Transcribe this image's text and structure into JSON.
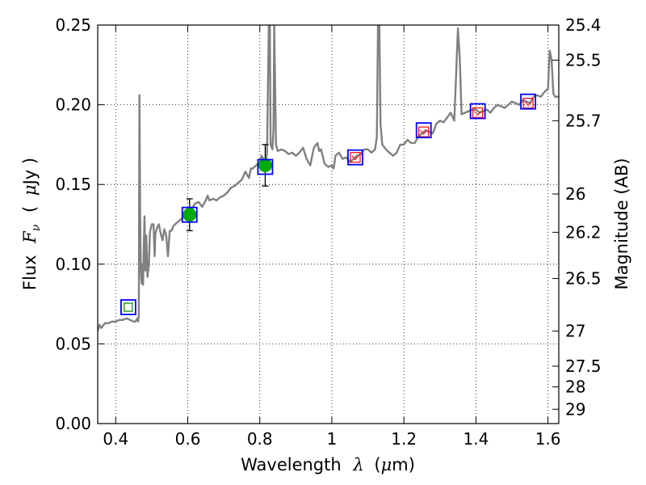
{
  "chart_data": {
    "type": "line",
    "title": "",
    "xlabel": {
      "prefix": "Wavelength",
      "symbol": "λ",
      "unit_open": "(",
      "unit_mu": "μ",
      "unit_rest": "m)"
    },
    "ylabel": {
      "prefix": "Flux",
      "symbol": "F",
      "subscript": "ν",
      "unit_open": "(",
      "unit_mu": "μ",
      "unit_rest": "Jy )"
    },
    "y2label": "Magnitude (AB)",
    "xlim": [
      0.35,
      1.63
    ],
    "ylim": [
      0.0,
      0.25
    ],
    "grid": true,
    "x_ticks": [
      {
        "value": 0.4,
        "label": "0.4"
      },
      {
        "value": 0.6,
        "label": "0.6"
      },
      {
        "value": 0.8,
        "label": "0.8"
      },
      {
        "value": 1.0,
        "label": "1"
      },
      {
        "value": 1.2,
        "label": "1.2"
      },
      {
        "value": 1.4,
        "label": "1.4"
      },
      {
        "value": 1.6,
        "label": "1.6"
      }
    ],
    "y_ticks": [
      {
        "value": 0.0,
        "label": "0.00"
      },
      {
        "value": 0.05,
        "label": "0.05"
      },
      {
        "value": 0.1,
        "label": "0.10"
      },
      {
        "value": 0.15,
        "label": "0.15"
      },
      {
        "value": 0.2,
        "label": "0.20"
      },
      {
        "value": 0.25,
        "label": "0.25"
      }
    ],
    "y2_ticks": [
      {
        "label": "25.4",
        "flux": 0.25
      },
      {
        "label": "25.5",
        "flux": 0.228
      },
      {
        "label": "25.7",
        "flux": 0.19
      },
      {
        "label": "26",
        "flux": 0.144
      },
      {
        "label": "26.2",
        "flux": 0.12
      },
      {
        "label": "26.5",
        "flux": 0.091
      },
      {
        "label": "27",
        "flux": 0.058
      },
      {
        "label": "27.5",
        "flux": 0.036
      },
      {
        "label": "28",
        "flux": 0.023
      },
      {
        "label": "29",
        "flux": 0.009
      }
    ],
    "series": [
      {
        "kind": "spectrum",
        "color": "#808080",
        "points": [
          [
            0.35,
            0.058
          ],
          [
            0.355,
            0.062
          ],
          [
            0.36,
            0.06
          ],
          [
            0.37,
            0.063
          ],
          [
            0.38,
            0.063
          ],
          [
            0.39,
            0.064
          ],
          [
            0.4,
            0.064
          ],
          [
            0.41,
            0.065
          ],
          [
            0.42,
            0.065
          ],
          [
            0.43,
            0.066
          ],
          [
            0.44,
            0.065
          ],
          [
            0.45,
            0.064
          ],
          [
            0.455,
            0.064
          ],
          [
            0.46,
            0.066
          ],
          [
            0.462,
            0.064
          ],
          [
            0.464,
            0.068
          ],
          [
            0.466,
            0.206
          ],
          [
            0.468,
            0.13
          ],
          [
            0.47,
            0.095
          ],
          [
            0.472,
            0.088
          ],
          [
            0.474,
            0.1
          ],
          [
            0.476,
            0.087
          ],
          [
            0.478,
            0.112
          ],
          [
            0.48,
            0.13
          ],
          [
            0.482,
            0.096
          ],
          [
            0.485,
            0.118
          ],
          [
            0.488,
            0.092
          ],
          [
            0.492,
            0.099
          ],
          [
            0.495,
            0.12
          ],
          [
            0.5,
            0.125
          ],
          [
            0.505,
            0.125
          ],
          [
            0.508,
            0.105
          ],
          [
            0.51,
            0.119
          ],
          [
            0.515,
            0.123
          ],
          [
            0.52,
            0.125
          ],
          [
            0.525,
            0.119
          ],
          [
            0.53,
            0.115
          ],
          [
            0.535,
            0.122
          ],
          [
            0.54,
            0.118
          ],
          [
            0.545,
            0.105
          ],
          [
            0.55,
            0.121
          ],
          [
            0.555,
            0.121
          ],
          [
            0.56,
            0.124
          ],
          [
            0.57,
            0.126
          ],
          [
            0.58,
            0.128
          ],
          [
            0.59,
            0.13
          ],
          [
            0.6,
            0.131
          ],
          [
            0.605,
            0.132
          ],
          [
            0.61,
            0.134
          ],
          [
            0.615,
            0.136
          ],
          [
            0.62,
            0.138
          ],
          [
            0.63,
            0.139
          ],
          [
            0.64,
            0.136
          ],
          [
            0.65,
            0.14
          ],
          [
            0.655,
            0.143
          ],
          [
            0.66,
            0.14
          ],
          [
            0.67,
            0.141
          ],
          [
            0.68,
            0.14
          ],
          [
            0.69,
            0.142
          ],
          [
            0.7,
            0.143
          ],
          [
            0.71,
            0.145
          ],
          [
            0.72,
            0.148
          ],
          [
            0.73,
            0.149
          ],
          [
            0.74,
            0.151
          ],
          [
            0.75,
            0.153
          ],
          [
            0.76,
            0.158
          ],
          [
            0.77,
            0.154
          ],
          [
            0.775,
            0.16
          ],
          [
            0.78,
            0.16
          ],
          [
            0.79,
            0.162
          ],
          [
            0.8,
            0.164
          ],
          [
            0.805,
            0.168
          ],
          [
            0.81,
            0.166
          ],
          [
            0.815,
            0.16
          ],
          [
            0.82,
            0.17
          ],
          [
            0.825,
            0.25
          ],
          [
            0.828,
            0.25
          ],
          [
            0.83,
            0.175
          ],
          [
            0.835,
            0.172
          ],
          [
            0.838,
            0.185
          ],
          [
            0.84,
            0.25
          ],
          [
            0.845,
            0.175
          ],
          [
            0.85,
            0.171
          ],
          [
            0.86,
            0.172
          ],
          [
            0.87,
            0.171
          ],
          [
            0.88,
            0.169
          ],
          [
            0.89,
            0.17
          ],
          [
            0.9,
            0.168
          ],
          [
            0.91,
            0.17
          ],
          [
            0.92,
            0.173
          ],
          [
            0.93,
            0.166
          ],
          [
            0.94,
            0.162
          ],
          [
            0.95,
            0.173
          ],
          [
            0.96,
            0.176
          ],
          [
            0.965,
            0.171
          ],
          [
            0.97,
            0.172
          ],
          [
            0.98,
            0.163
          ],
          [
            0.99,
            0.161
          ],
          [
            1.0,
            0.162
          ],
          [
            1.005,
            0.16
          ],
          [
            1.01,
            0.168
          ],
          [
            1.02,
            0.17
          ],
          [
            1.03,
            0.166
          ],
          [
            1.04,
            0.167
          ],
          [
            1.05,
            0.164
          ],
          [
            1.06,
            0.166
          ],
          [
            1.07,
            0.168
          ],
          [
            1.08,
            0.169
          ],
          [
            1.09,
            0.172
          ],
          [
            1.1,
            0.172
          ],
          [
            1.11,
            0.17
          ],
          [
            1.12,
            0.172
          ],
          [
            1.125,
            0.18
          ],
          [
            1.128,
            0.25
          ],
          [
            1.132,
            0.25
          ],
          [
            1.135,
            0.188
          ],
          [
            1.14,
            0.175
          ],
          [
            1.15,
            0.172
          ],
          [
            1.16,
            0.17
          ],
          [
            1.17,
            0.168
          ],
          [
            1.18,
            0.17
          ],
          [
            1.19,
            0.175
          ],
          [
            1.2,
            0.175
          ],
          [
            1.21,
            0.178
          ],
          [
            1.22,
            0.176
          ],
          [
            1.23,
            0.176
          ],
          [
            1.24,
            0.18
          ],
          [
            1.25,
            0.182
          ],
          [
            1.26,
            0.184
          ],
          [
            1.27,
            0.183
          ],
          [
            1.28,
            0.182
          ],
          [
            1.29,
            0.188
          ],
          [
            1.3,
            0.19
          ],
          [
            1.31,
            0.189
          ],
          [
            1.32,
            0.192
          ],
          [
            1.33,
            0.195
          ],
          [
            1.34,
            0.19
          ],
          [
            1.35,
            0.248
          ],
          [
            1.355,
            0.23
          ],
          [
            1.36,
            0.194
          ],
          [
            1.37,
            0.195
          ],
          [
            1.38,
            0.196
          ],
          [
            1.39,
            0.197
          ],
          [
            1.4,
            0.197
          ],
          [
            1.41,
            0.195
          ],
          [
            1.42,
            0.196
          ],
          [
            1.43,
            0.197
          ],
          [
            1.44,
            0.195
          ],
          [
            1.45,
            0.198
          ],
          [
            1.46,
            0.2
          ],
          [
            1.47,
            0.199
          ],
          [
            1.48,
            0.198
          ],
          [
            1.49,
            0.2
          ],
          [
            1.5,
            0.202
          ],
          [
            1.51,
            0.201
          ],
          [
            1.52,
            0.2
          ],
          [
            1.53,
            0.203
          ],
          [
            1.54,
            0.202
          ],
          [
            1.55,
            0.201
          ],
          [
            1.56,
            0.205
          ],
          [
            1.57,
            0.206
          ],
          [
            1.58,
            0.205
          ],
          [
            1.59,
            0.208
          ],
          [
            1.6,
            0.21
          ],
          [
            1.605,
            0.234
          ],
          [
            1.61,
            0.228
          ],
          [
            1.615,
            0.207
          ],
          [
            1.62,
            0.205
          ],
          [
            1.63,
            0.205
          ]
        ]
      }
    ],
    "model_points": [
      {
        "x": 0.435,
        "y": 0.073,
        "color": "#0000ff"
      },
      {
        "x": 0.605,
        "y": 0.131,
        "color": "#0000ff"
      },
      {
        "x": 0.815,
        "y": 0.161,
        "color": "#0000ff"
      },
      {
        "x": 1.065,
        "y": 0.167,
        "color": "#0000ff"
      },
      {
        "x": 1.255,
        "y": 0.184,
        "color": "#0000ff"
      },
      {
        "x": 1.405,
        "y": 0.196,
        "color": "#0000ff"
      },
      {
        "x": 1.545,
        "y": 0.202,
        "color": "#0000ff"
      }
    ],
    "observed_points": [
      {
        "x": 0.435,
        "y": 0.073,
        "err": 0,
        "color": "#008000"
      },
      {
        "x": 0.605,
        "y": 0.131,
        "err": 0.01,
        "color": "#00aa00"
      },
      {
        "x": 0.815,
        "y": 0.162,
        "err": 0.013,
        "color": "#00aa00"
      }
    ],
    "upper_limits": [
      {
        "x": 1.065,
        "y": 0.167,
        "color": "#ff0000"
      },
      {
        "x": 1.255,
        "y": 0.183,
        "color": "#ff0000"
      },
      {
        "x": 1.405,
        "y": 0.195,
        "color": "#ff0000"
      },
      {
        "x": 1.545,
        "y": 0.201,
        "color": "#ff0000"
      }
    ]
  }
}
